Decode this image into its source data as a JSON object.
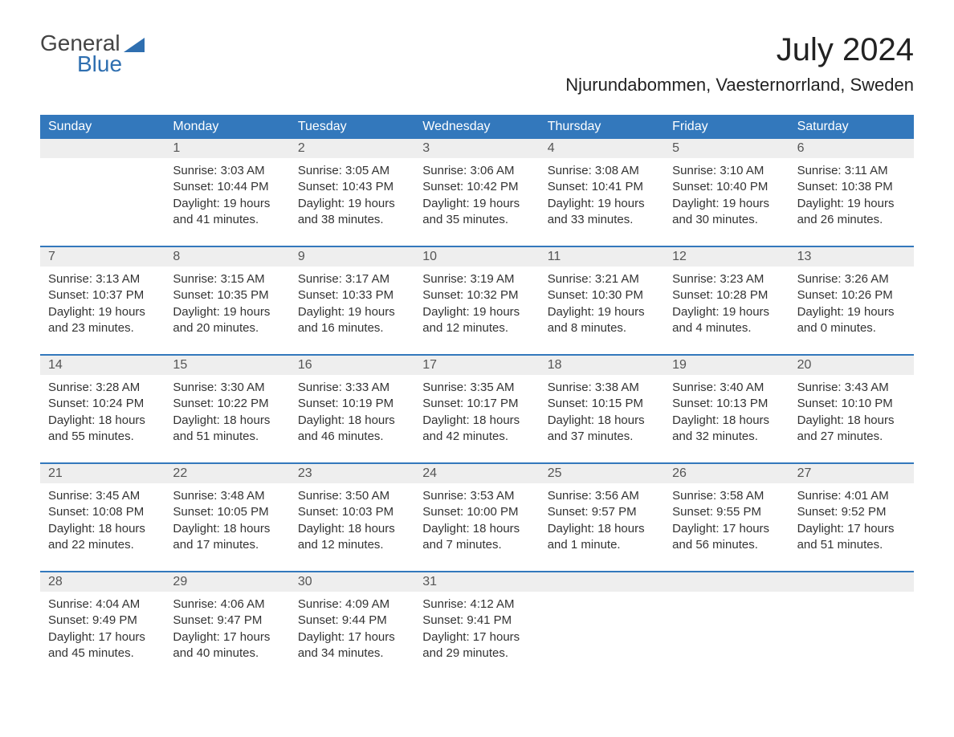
{
  "logo": {
    "line1": "General",
    "line2": "Blue"
  },
  "title": {
    "month": "July 2024",
    "location": "Njurundabommen, Vaesternorrland, Sweden"
  },
  "colors": {
    "header_bg": "#3378bc",
    "header_text": "#ffffff",
    "strip_bg": "#eeeeee",
    "row_border": "#3378bc",
    "body_text": "#333333",
    "logo_blue": "#2f6fb0"
  },
  "weekdays": [
    "Sunday",
    "Monday",
    "Tuesday",
    "Wednesday",
    "Thursday",
    "Friday",
    "Saturday"
  ],
  "weeks": [
    {
      "nums": [
        "",
        "1",
        "2",
        "3",
        "4",
        "5",
        "6"
      ],
      "cells": [
        {},
        {
          "sunrise": "Sunrise: 3:03 AM",
          "sunset": "Sunset: 10:44 PM",
          "daylight": "Daylight: 19 hours and 41 minutes."
        },
        {
          "sunrise": "Sunrise: 3:05 AM",
          "sunset": "Sunset: 10:43 PM",
          "daylight": "Daylight: 19 hours and 38 minutes."
        },
        {
          "sunrise": "Sunrise: 3:06 AM",
          "sunset": "Sunset: 10:42 PM",
          "daylight": "Daylight: 19 hours and 35 minutes."
        },
        {
          "sunrise": "Sunrise: 3:08 AM",
          "sunset": "Sunset: 10:41 PM",
          "daylight": "Daylight: 19 hours and 33 minutes."
        },
        {
          "sunrise": "Sunrise: 3:10 AM",
          "sunset": "Sunset: 10:40 PM",
          "daylight": "Daylight: 19 hours and 30 minutes."
        },
        {
          "sunrise": "Sunrise: 3:11 AM",
          "sunset": "Sunset: 10:38 PM",
          "daylight": "Daylight: 19 hours and 26 minutes."
        }
      ]
    },
    {
      "nums": [
        "7",
        "8",
        "9",
        "10",
        "11",
        "12",
        "13"
      ],
      "cells": [
        {
          "sunrise": "Sunrise: 3:13 AM",
          "sunset": "Sunset: 10:37 PM",
          "daylight": "Daylight: 19 hours and 23 minutes."
        },
        {
          "sunrise": "Sunrise: 3:15 AM",
          "sunset": "Sunset: 10:35 PM",
          "daylight": "Daylight: 19 hours and 20 minutes."
        },
        {
          "sunrise": "Sunrise: 3:17 AM",
          "sunset": "Sunset: 10:33 PM",
          "daylight": "Daylight: 19 hours and 16 minutes."
        },
        {
          "sunrise": "Sunrise: 3:19 AM",
          "sunset": "Sunset: 10:32 PM",
          "daylight": "Daylight: 19 hours and 12 minutes."
        },
        {
          "sunrise": "Sunrise: 3:21 AM",
          "sunset": "Sunset: 10:30 PM",
          "daylight": "Daylight: 19 hours and 8 minutes."
        },
        {
          "sunrise": "Sunrise: 3:23 AM",
          "sunset": "Sunset: 10:28 PM",
          "daylight": "Daylight: 19 hours and 4 minutes."
        },
        {
          "sunrise": "Sunrise: 3:26 AM",
          "sunset": "Sunset: 10:26 PM",
          "daylight": "Daylight: 19 hours and 0 minutes."
        }
      ]
    },
    {
      "nums": [
        "14",
        "15",
        "16",
        "17",
        "18",
        "19",
        "20"
      ],
      "cells": [
        {
          "sunrise": "Sunrise: 3:28 AM",
          "sunset": "Sunset: 10:24 PM",
          "daylight": "Daylight: 18 hours and 55 minutes."
        },
        {
          "sunrise": "Sunrise: 3:30 AM",
          "sunset": "Sunset: 10:22 PM",
          "daylight": "Daylight: 18 hours and 51 minutes."
        },
        {
          "sunrise": "Sunrise: 3:33 AM",
          "sunset": "Sunset: 10:19 PM",
          "daylight": "Daylight: 18 hours and 46 minutes."
        },
        {
          "sunrise": "Sunrise: 3:35 AM",
          "sunset": "Sunset: 10:17 PM",
          "daylight": "Daylight: 18 hours and 42 minutes."
        },
        {
          "sunrise": "Sunrise: 3:38 AM",
          "sunset": "Sunset: 10:15 PM",
          "daylight": "Daylight: 18 hours and 37 minutes."
        },
        {
          "sunrise": "Sunrise: 3:40 AM",
          "sunset": "Sunset: 10:13 PM",
          "daylight": "Daylight: 18 hours and 32 minutes."
        },
        {
          "sunrise": "Sunrise: 3:43 AM",
          "sunset": "Sunset: 10:10 PM",
          "daylight": "Daylight: 18 hours and 27 minutes."
        }
      ]
    },
    {
      "nums": [
        "21",
        "22",
        "23",
        "24",
        "25",
        "26",
        "27"
      ],
      "cells": [
        {
          "sunrise": "Sunrise: 3:45 AM",
          "sunset": "Sunset: 10:08 PM",
          "daylight": "Daylight: 18 hours and 22 minutes."
        },
        {
          "sunrise": "Sunrise: 3:48 AM",
          "sunset": "Sunset: 10:05 PM",
          "daylight": "Daylight: 18 hours and 17 minutes."
        },
        {
          "sunrise": "Sunrise: 3:50 AM",
          "sunset": "Sunset: 10:03 PM",
          "daylight": "Daylight: 18 hours and 12 minutes."
        },
        {
          "sunrise": "Sunrise: 3:53 AM",
          "sunset": "Sunset: 10:00 PM",
          "daylight": "Daylight: 18 hours and 7 minutes."
        },
        {
          "sunrise": "Sunrise: 3:56 AM",
          "sunset": "Sunset: 9:57 PM",
          "daylight": "Daylight: 18 hours and 1 minute."
        },
        {
          "sunrise": "Sunrise: 3:58 AM",
          "sunset": "Sunset: 9:55 PM",
          "daylight": "Daylight: 17 hours and 56 minutes."
        },
        {
          "sunrise": "Sunrise: 4:01 AM",
          "sunset": "Sunset: 9:52 PM",
          "daylight": "Daylight: 17 hours and 51 minutes."
        }
      ]
    },
    {
      "nums": [
        "28",
        "29",
        "30",
        "31",
        "",
        "",
        ""
      ],
      "cells": [
        {
          "sunrise": "Sunrise: 4:04 AM",
          "sunset": "Sunset: 9:49 PM",
          "daylight": "Daylight: 17 hours and 45 minutes."
        },
        {
          "sunrise": "Sunrise: 4:06 AM",
          "sunset": "Sunset: 9:47 PM",
          "daylight": "Daylight: 17 hours and 40 minutes."
        },
        {
          "sunrise": "Sunrise: 4:09 AM",
          "sunset": "Sunset: 9:44 PM",
          "daylight": "Daylight: 17 hours and 34 minutes."
        },
        {
          "sunrise": "Sunrise: 4:12 AM",
          "sunset": "Sunset: 9:41 PM",
          "daylight": "Daylight: 17 hours and 29 minutes."
        },
        {},
        {},
        {}
      ]
    }
  ]
}
